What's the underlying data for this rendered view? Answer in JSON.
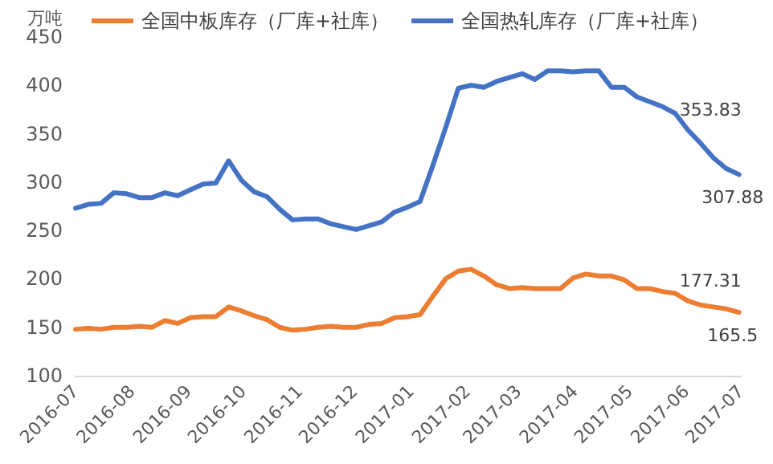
{
  "chart_data": {
    "type": "line",
    "ylabel": "万吨",
    "legend": "top",
    "grid": false,
    "line_style": "solid",
    "x": [
      "2016-07-01",
      "2016-07-08",
      "2016-07-15",
      "2016-07-22",
      "2016-07-29",
      "2016-08-05",
      "2016-08-12",
      "2016-08-19",
      "2016-08-26",
      "2016-09-02",
      "2016-09-09",
      "2016-09-16",
      "2016-09-23",
      "2016-09-30",
      "2016-10-07",
      "2016-10-14",
      "2016-10-21",
      "2016-10-28",
      "2016-11-04",
      "2016-11-11",
      "2016-11-18",
      "2016-11-25",
      "2016-12-02",
      "2016-12-09",
      "2016-12-16",
      "2016-12-23",
      "2016-12-30",
      "2017-01-06",
      "2017-01-13",
      "2017-01-20",
      "2017-01-27",
      "2017-02-03",
      "2017-02-10",
      "2017-02-17",
      "2017-02-24",
      "2017-03-03",
      "2017-03-10",
      "2017-03-17",
      "2017-03-24",
      "2017-03-31",
      "2017-04-07",
      "2017-04-14",
      "2017-04-21",
      "2017-04-28",
      "2017-05-05",
      "2017-05-12",
      "2017-05-19",
      "2017-05-26",
      "2017-06-02",
      "2017-06-09",
      "2017-06-16",
      "2017-06-23",
      "2017-06-30"
    ],
    "xlim": [
      "2016-07-01",
      "2017-07-01"
    ],
    "xticks": [
      "2016-07",
      "2016-08",
      "2016-09",
      "2016-10",
      "2016-11",
      "2016-12",
      "2017-01",
      "2017-02",
      "2017-03",
      "2017-04",
      "2017-05",
      "2017-06",
      "2017-07"
    ],
    "ylim": [
      100,
      450
    ],
    "yticks": [
      100,
      150,
      200,
      250,
      300,
      350,
      400,
      450
    ],
    "series": [
      {
        "name": "全国中板库存（厂库+社库）",
        "color": "#ed7d31",
        "values": [
          148,
          149,
          148,
          150,
          150,
          151,
          150,
          157,
          154,
          160,
          161,
          161,
          171,
          167,
          162,
          158,
          150,
          147,
          148,
          150,
          151,
          150,
          150,
          153,
          154,
          160,
          161,
          163,
          182,
          200,
          208,
          210,
          203,
          194,
          190,
          191,
          190,
          190,
          190,
          201,
          205,
          203,
          203,
          199,
          190,
          190,
          187,
          185,
          177.31,
          173,
          171,
          169,
          165.5
        ],
        "value_labels": [
          null,
          null,
          null,
          null,
          null,
          null,
          null,
          null,
          null,
          null,
          null,
          null,
          null,
          null,
          null,
          null,
          null,
          null,
          null,
          null,
          null,
          null,
          null,
          null,
          null,
          null,
          null,
          null,
          null,
          null,
          null,
          null,
          null,
          null,
          null,
          null,
          null,
          null,
          null,
          null,
          null,
          null,
          null,
          null,
          null,
          null,
          null,
          null,
          "177.31",
          null,
          null,
          null,
          "165.5"
        ]
      },
      {
        "name": "全国热轧库存（厂库+社库）",
        "color": "#4472c4",
        "values": [
          273,
          277,
          278,
          289,
          288,
          284,
          284,
          289,
          286,
          292,
          298,
          299,
          322,
          302,
          290,
          285,
          272,
          261,
          262,
          262,
          257,
          254,
          251,
          255,
          259,
          269,
          274,
          280,
          317,
          356,
          397,
          400,
          398,
          404,
          408,
          412,
          406,
          415,
          415,
          414,
          415,
          415,
          398,
          398,
          388,
          383,
          378,
          371,
          353.83,
          340,
          325,
          314,
          307.88
        ],
        "value_labels": [
          null,
          null,
          null,
          null,
          null,
          null,
          null,
          null,
          null,
          null,
          null,
          null,
          null,
          null,
          null,
          null,
          null,
          null,
          null,
          null,
          null,
          null,
          null,
          null,
          null,
          null,
          null,
          null,
          null,
          null,
          null,
          null,
          null,
          null,
          null,
          null,
          null,
          null,
          null,
          null,
          null,
          null,
          null,
          null,
          null,
          null,
          null,
          null,
          "353.83",
          null,
          null,
          null,
          "307.88"
        ]
      }
    ]
  }
}
